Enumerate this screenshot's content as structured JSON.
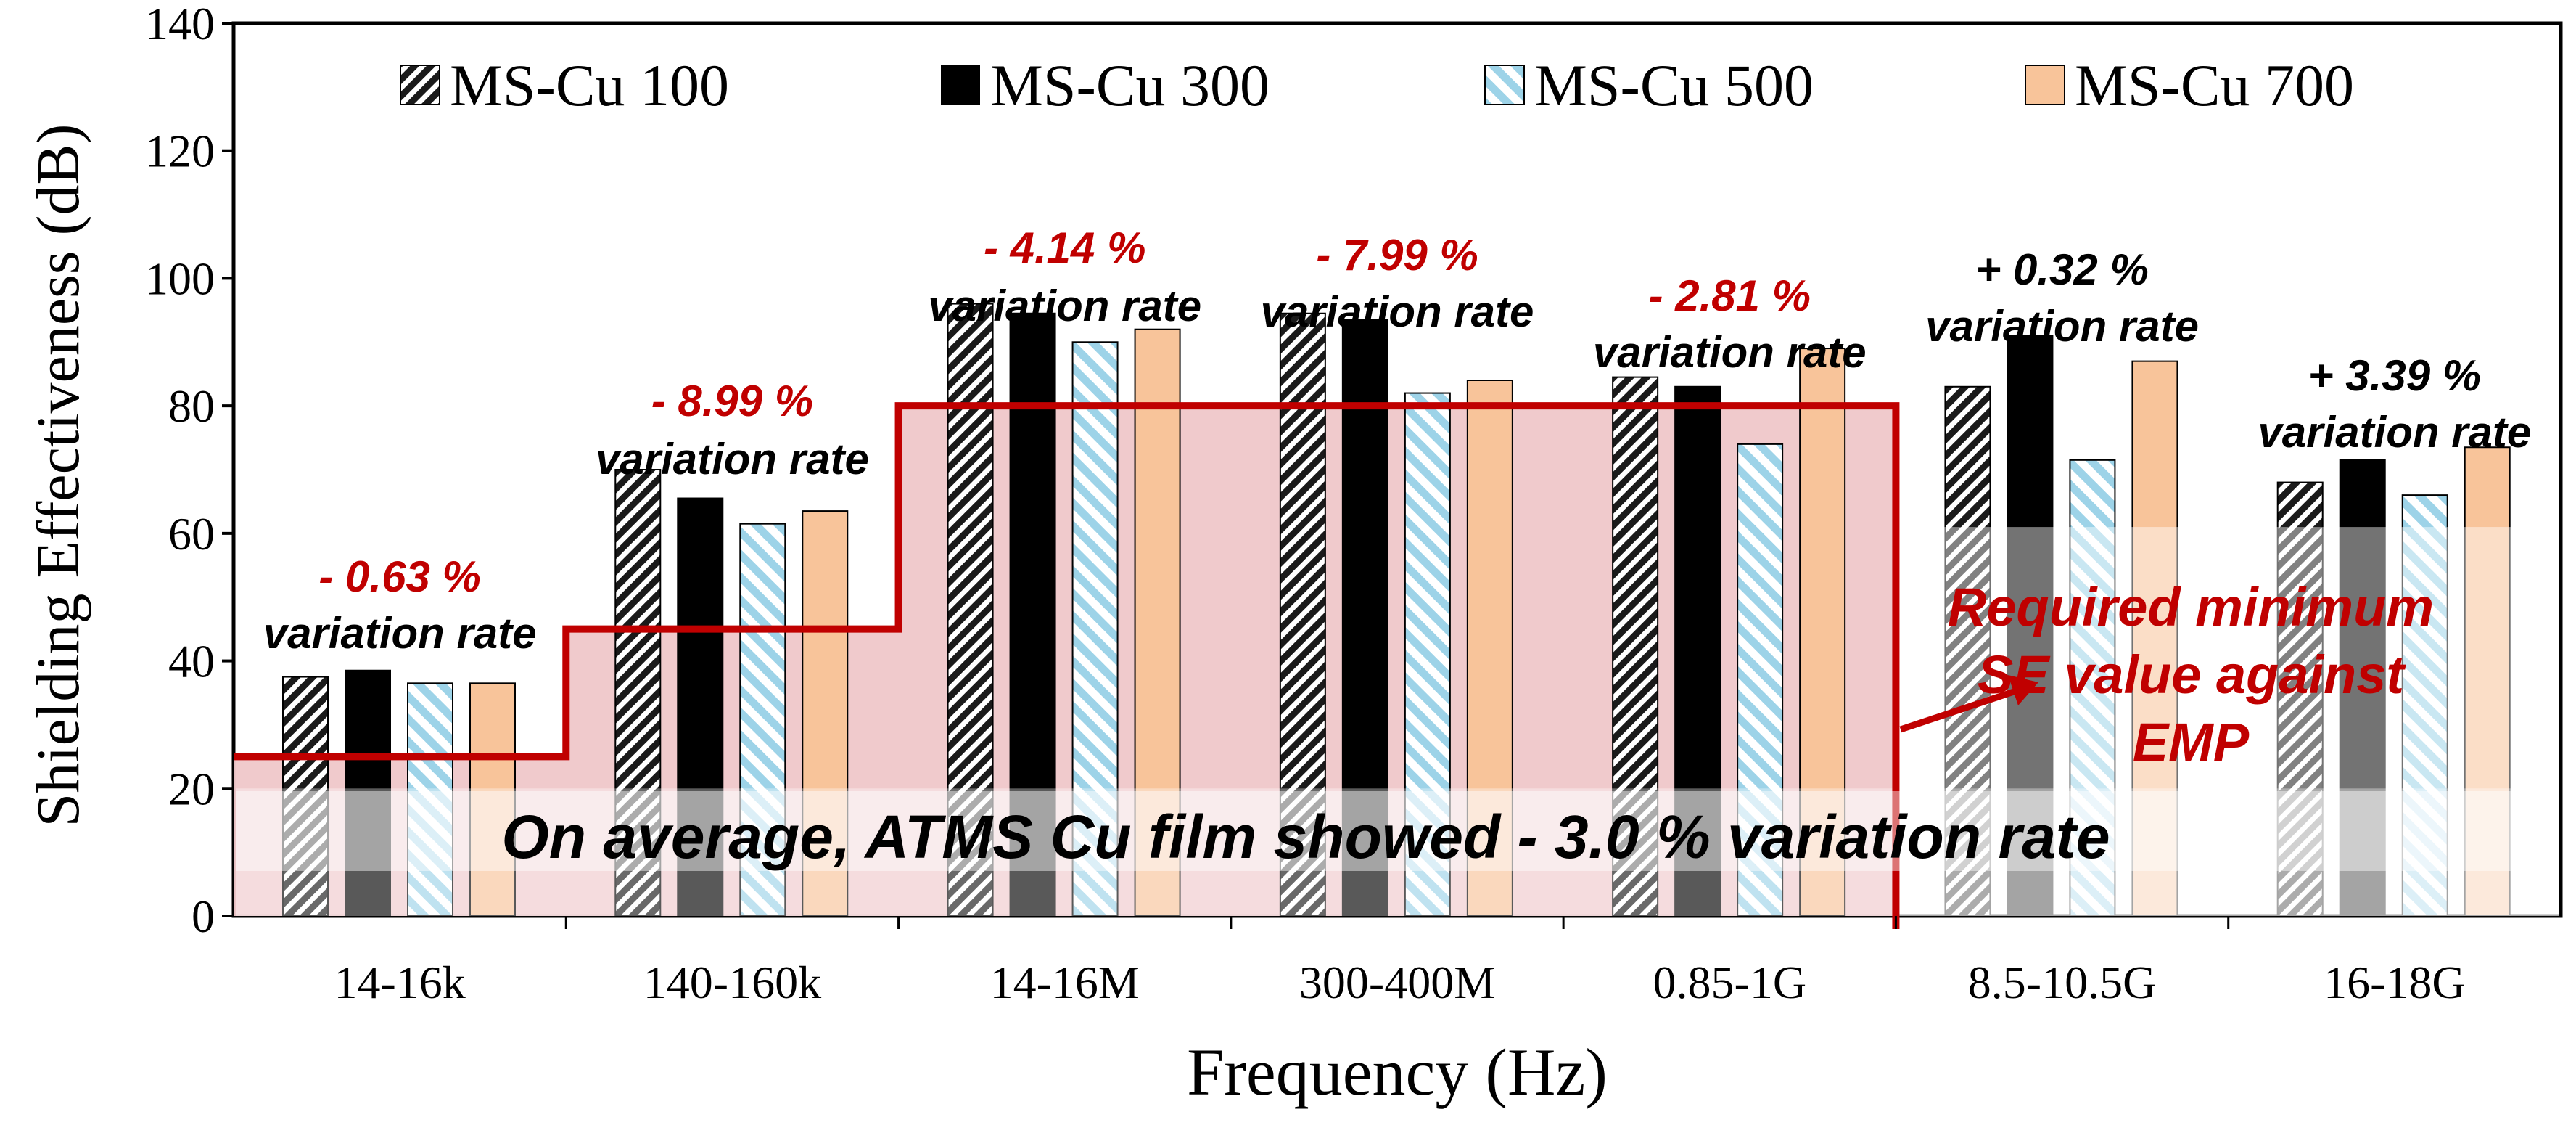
{
  "chart_data": {
    "type": "bar",
    "xlabel": "Frequency (Hz)",
    "ylabel": "Shielding Effectiveness  (dB)",
    "ylim": [
      0,
      140
    ],
    "yticks": [
      0,
      20,
      40,
      60,
      80,
      100,
      120,
      140
    ],
    "categories": [
      "14-16k",
      "140-160k",
      "14-16M",
      "300-400M",
      "0.85-1G",
      "8.5-10.5G",
      "16-18G"
    ],
    "series": [
      {
        "name": "MS-Cu 100",
        "values": [
          37.5,
          70,
          96,
          94.5,
          84.5,
          83,
          68
        ],
        "color": "#ffffff",
        "pattern": "dark-diagonal-hatch"
      },
      {
        "name": "MS-Cu 300",
        "values": [
          38.5,
          65.5,
          94.5,
          93.5,
          83,
          91,
          71.5
        ],
        "color": "#000000",
        "pattern": "solid"
      },
      {
        "name": "MS-Cu 500",
        "values": [
          36.5,
          61.5,
          90,
          82,
          74,
          71.5,
          66
        ],
        "color": "#9dd3e8",
        "pattern": "light-diagonal-stripe"
      },
      {
        "name": "MS-Cu 700",
        "values": [
          36.5,
          63.5,
          92,
          84,
          89,
          87,
          73.5
        ],
        "color": "#f8c49a",
        "pattern": "solid"
      }
    ],
    "legend": "top",
    "grid": false,
    "threshold": {
      "label": "Required minimum SE value against EMP",
      "steps": [
        {
          "from_category": 0,
          "value": 25
        },
        {
          "from_category": 1,
          "value": 45
        },
        {
          "from_category": 2,
          "value": 80
        }
      ],
      "color": "#c00000"
    },
    "annotations": [
      {
        "category": "14-16k",
        "rate": "- 0.63 %",
        "text": "variation rate",
        "rate_color": "#c00000"
      },
      {
        "category": "140-160k",
        "rate": "- 8.99 %",
        "text": "variation rate",
        "rate_color": "#c00000"
      },
      {
        "category": "14-16M",
        "rate": "- 4.14 %",
        "text": "variation rate",
        "rate_color": "#c00000"
      },
      {
        "category": "300-400M",
        "rate": "- 7.99 %",
        "text": "variation rate",
        "rate_color": "#c00000"
      },
      {
        "category": "0.85-1G",
        "rate": "- 2.81 %",
        "text": "variation rate",
        "rate_color": "#c00000"
      },
      {
        "category": "8.5-10.5G",
        "rate": "+ 0.32 %",
        "text": "variation rate",
        "rate_color": "#000000"
      },
      {
        "category": "16-18G",
        "rate": "+ 3.39 %",
        "text": "variation rate",
        "rate_color": "#000000"
      }
    ],
    "required_label_lines": [
      "Required minimum",
      "SE value against",
      "EMP"
    ],
    "banner": "On average, ATMS Cu film showed - 3.0 % variation rate"
  }
}
